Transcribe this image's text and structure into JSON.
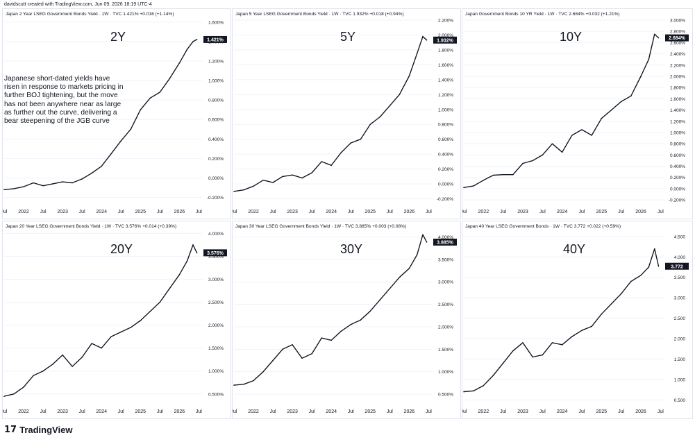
{
  "credit": "davidscutt created with TradingView.com, Jun 09, 2026 18:19 UTC-4",
  "brand": "TradingView",
  "annotation": "Japanese short-dated yields have risen in response to markets pricing in further BOJ tightening, but the move has not been anywhere near as large as further out the curve, delivering a bear steepening of the JGB curve",
  "colors": {
    "line": "#131722",
    "grid": "#f0f3fa",
    "border": "#e0e3eb",
    "badge_bg": "#131722",
    "badge_text": "#ffffff"
  },
  "chart_data": [
    {
      "type": "line",
      "title": "Japan 2 Year LSEG Government Bonds Yield · 1W · TVC  1.421%  +0.016 (+1.14%)",
      "label": "2Y",
      "last_label": "1.421%",
      "x_ticks": [
        "Jul",
        "2022",
        "Jul",
        "2023",
        "Jul",
        "2024",
        "Jul",
        "2025",
        "Jul",
        "2026",
        "Jul"
      ],
      "y_ticks": [
        "1.600%",
        "1.400%",
        "1.200%",
        "1.000%",
        "0.800%",
        "0.600%",
        "0.400%",
        "0.200%",
        "0.000%",
        "-0.200%"
      ],
      "ylim": [
        -0.26,
        1.62
      ],
      "x": [
        2021.5,
        2021.75,
        2022.0,
        2022.25,
        2022.5,
        2022.75,
        2023.0,
        2023.25,
        2023.5,
        2023.75,
        2024.0,
        2024.25,
        2024.5,
        2024.75,
        2025.0,
        2025.25,
        2025.5,
        2025.75,
        2026.0,
        2026.2,
        2026.35,
        2026.45
      ],
      "y": [
        -0.12,
        -0.11,
        -0.09,
        -0.05,
        -0.08,
        -0.06,
        -0.04,
        -0.05,
        -0.01,
        0.05,
        0.12,
        0.25,
        0.38,
        0.5,
        0.7,
        0.82,
        0.88,
        1.02,
        1.18,
        1.32,
        1.4,
        1.421
      ]
    },
    {
      "type": "line",
      "title": "Japan 5 Year LSEG Government Bonds Yield · 1W · TVC  1.932%  +0.018 (+0.94%)",
      "label": "5Y",
      "last_label": "1.932%",
      "x_ticks": [
        "Jul",
        "2022",
        "Jul",
        "2023",
        "Jul",
        "2024",
        "Jul",
        "2025",
        "Jul",
        "2026",
        "Jul"
      ],
      "y_ticks": [
        "2.200%",
        "2.000%",
        "1.800%",
        "1.600%",
        "1.400%",
        "1.200%",
        "1.000%",
        "0.800%",
        "0.600%",
        "0.400%",
        "0.200%",
        "0.000%",
        "-0.200%"
      ],
      "ylim": [
        -0.26,
        2.2
      ],
      "x": [
        2021.5,
        2021.75,
        2022.0,
        2022.25,
        2022.5,
        2022.75,
        2023.0,
        2023.25,
        2023.5,
        2023.75,
        2024.0,
        2024.25,
        2024.5,
        2024.75,
        2025.0,
        2025.25,
        2025.5,
        2025.75,
        2026.0,
        2026.2,
        2026.35,
        2026.45
      ],
      "y": [
        -0.1,
        -0.08,
        -0.03,
        0.05,
        0.02,
        0.1,
        0.12,
        0.08,
        0.15,
        0.3,
        0.25,
        0.42,
        0.55,
        0.6,
        0.8,
        0.9,
        1.05,
        1.2,
        1.45,
        1.75,
        1.98,
        1.932
      ]
    },
    {
      "type": "line",
      "title": "Japan Government Bonds 10 YR Yield · 1W · TVC  2.684%  +0.032 (+1.21%)",
      "label": "10Y",
      "last_label": "2.684%",
      "x_ticks": [
        "Jul",
        "2022",
        "Jul",
        "2023",
        "Jul",
        "2024",
        "Jul",
        "2025",
        "Jul",
        "2026",
        "Jul"
      ],
      "y_ticks": [
        "3.000%",
        "2.800%",
        "2.600%",
        "2.400%",
        "2.200%",
        "2.000%",
        "1.800%",
        "1.600%",
        "1.400%",
        "1.200%",
        "1.000%",
        "0.800%",
        "0.600%",
        "0.400%",
        "0.200%",
        "0.000%",
        "-0.200%"
      ],
      "ylim": [
        -0.26,
        3.0
      ],
      "x": [
        2021.5,
        2021.75,
        2022.0,
        2022.25,
        2022.5,
        2022.75,
        2023.0,
        2023.25,
        2023.5,
        2023.75,
        2024.0,
        2024.25,
        2024.5,
        2024.75,
        2025.0,
        2025.25,
        2025.5,
        2025.75,
        2026.0,
        2026.2,
        2026.35,
        2026.45
      ],
      "y": [
        0.02,
        0.05,
        0.15,
        0.24,
        0.25,
        0.25,
        0.45,
        0.5,
        0.6,
        0.8,
        0.65,
        0.95,
        1.05,
        0.95,
        1.25,
        1.4,
        1.55,
        1.65,
        2.0,
        2.3,
        2.75,
        2.684
      ]
    },
    {
      "type": "line",
      "title": "Japan 20 Year LSEG Government Bonds Yield · 1W · TVC  3.576%  +0.014 (+0.39%)",
      "label": "20Y",
      "last_label": "3.576%",
      "x_ticks": [
        "Jul",
        "2022",
        "Jul",
        "2023",
        "Jul",
        "2024",
        "Jul",
        "2025",
        "Jul",
        "2026",
        "Jul"
      ],
      "y_ticks": [
        "4.000%",
        "3.500%",
        "3.000%",
        "2.500%",
        "2.000%",
        "1.500%",
        "1.000%",
        "0.500%"
      ],
      "ylim": [
        0.3,
        4.02
      ],
      "x": [
        2021.5,
        2021.75,
        2022.0,
        2022.25,
        2022.5,
        2022.75,
        2023.0,
        2023.25,
        2023.5,
        2023.75,
        2024.0,
        2024.25,
        2024.5,
        2024.75,
        2025.0,
        2025.25,
        2025.5,
        2025.75,
        2026.0,
        2026.2,
        2026.35,
        2026.45
      ],
      "y": [
        0.45,
        0.5,
        0.65,
        0.9,
        1.0,
        1.15,
        1.35,
        1.1,
        1.3,
        1.6,
        1.5,
        1.75,
        1.85,
        1.95,
        2.1,
        2.3,
        2.5,
        2.8,
        3.1,
        3.4,
        3.75,
        3.576
      ]
    },
    {
      "type": "line",
      "title": "Japan 30 Year LSEG Government Bonds Yield · 1W · TVC  3.885%  +0.003 (+0.08%)",
      "label": "30Y",
      "last_label": "3.885%",
      "x_ticks": [
        "Jul",
        "2022",
        "Jul",
        "2023",
        "Jul",
        "2024",
        "Jul",
        "2025",
        "Jul",
        "2026",
        "Jul"
      ],
      "y_ticks": [
        "4.000%",
        "3.500%",
        "3.000%",
        "2.500%",
        "2.000%",
        "1.500%",
        "1.000%",
        "0.500%"
      ],
      "ylim": [
        0.3,
        4.1
      ],
      "x": [
        2021.5,
        2021.75,
        2022.0,
        2022.25,
        2022.5,
        2022.75,
        2023.0,
        2023.25,
        2023.5,
        2023.75,
        2024.0,
        2024.25,
        2024.5,
        2024.75,
        2025.0,
        2025.25,
        2025.5,
        2025.75,
        2026.0,
        2026.2,
        2026.35,
        2026.45
      ],
      "y": [
        0.7,
        0.72,
        0.8,
        1.0,
        1.25,
        1.5,
        1.6,
        1.3,
        1.4,
        1.75,
        1.7,
        1.9,
        2.05,
        2.15,
        2.35,
        2.6,
        2.85,
        3.1,
        3.3,
        3.6,
        4.05,
        3.885
      ]
    },
    {
      "type": "line",
      "title": "Japan 40 Year LSEG Government Bonds · 1W · TVC  3.772  +0.022 (+0.59%)",
      "label": "40Y",
      "last_label": "3.772",
      "x_ticks": [
        "Jul",
        "2022",
        "Jul",
        "2023",
        "Jul",
        "2024",
        "Jul",
        "2025",
        "Jul",
        "2026",
        "Jul"
      ],
      "y_ticks": [
        "4.500",
        "4.000",
        "3.500",
        "3.000",
        "2.500",
        "2.000",
        "1.500",
        "1.000",
        "0.500"
      ],
      "ylim": [
        0.42,
        4.6
      ],
      "x": [
        2021.5,
        2021.75,
        2022.0,
        2022.25,
        2022.5,
        2022.75,
        2023.0,
        2023.25,
        2023.5,
        2023.75,
        2024.0,
        2024.25,
        2024.5,
        2024.75,
        2025.0,
        2025.25,
        2025.5,
        2025.75,
        2026.0,
        2026.2,
        2026.35,
        2026.45
      ],
      "y": [
        0.7,
        0.72,
        0.85,
        1.1,
        1.4,
        1.7,
        1.9,
        1.55,
        1.6,
        1.9,
        1.85,
        2.05,
        2.2,
        2.3,
        2.6,
        2.85,
        3.1,
        3.4,
        3.55,
        3.75,
        4.2,
        3.772
      ]
    }
  ]
}
